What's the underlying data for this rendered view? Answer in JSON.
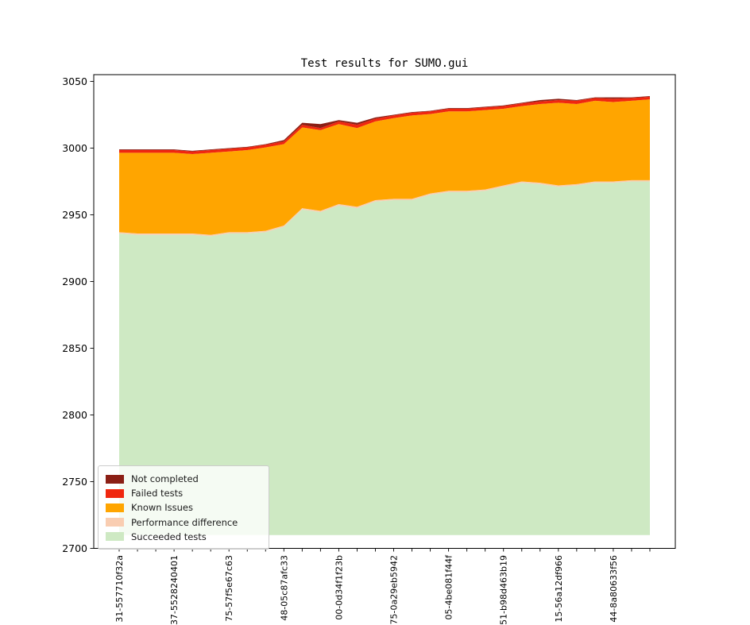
{
  "figure": {
    "background": "#ffffff"
  },
  "chart_data": {
    "type": "area",
    "stacked": true,
    "title": "Test results for SUMO.gui",
    "xlabel": "",
    "ylabel": "",
    "ylim": [
      2700,
      3055
    ],
    "yticks": [
      2700,
      2750,
      2800,
      2850,
      2900,
      2950,
      3000,
      3050
    ],
    "grid": false,
    "num_points": 30,
    "baseline": 2710,
    "x_tick_label_every": 3,
    "x_tick_labels": [
      "31-557710f32a",
      "37-5528240401",
      "75-57f5e67c63",
      "48-05c87afc33",
      "00-0d34f1f23b",
      "75-0a29eb5942",
      "05-4be081f44f",
      "51-b98d463b19",
      "15-56a12df966",
      "44-8a80633f56"
    ],
    "series": [
      {
        "name": "Succeeded tests",
        "color": "#cee9c3",
        "top_values": [
          2936,
          2935,
          2935,
          2935,
          2935,
          2934,
          2936,
          2936,
          2937,
          2941,
          2954,
          2952,
          2957,
          2955,
          2960,
          2961,
          2961,
          2965,
          2967,
          2967,
          2968,
          2971,
          2974,
          2973,
          2971,
          2972,
          2974,
          2974,
          2975,
          2975
        ]
      },
      {
        "name": "Performance difference",
        "color": "#f9cdb1",
        "top_values": [
          2937,
          2936,
          2936,
          2936,
          2936,
          2935,
          2937,
          2937,
          2938,
          2942,
          2955,
          2953,
          2958,
          2956,
          2961,
          2962,
          2962,
          2966,
          2968,
          2968,
          2969,
          2972,
          2975,
          2974,
          2972,
          2973,
          2975,
          2975,
          2976,
          2976
        ]
      },
      {
        "name": "Known Issues",
        "color": "#ffa500",
        "top_values": [
          2996.5,
          2996.5,
          2996.5,
          2996.5,
          2995.5,
          2996.5,
          2997.5,
          2998.5,
          3000.5,
          3003,
          3015.5,
          3013.5,
          3018,
          3015,
          3020,
          3022.5,
          3024.5,
          3025.5,
          3027.5,
          3027.5,
          3028.5,
          3029.5,
          3031.5,
          3033,
          3034,
          3033,
          3035.5,
          3034.5,
          3035.5,
          3036.5
        ]
      },
      {
        "name": "Failed tests",
        "color": "#f0270f",
        "top_values": [
          2998.5,
          2998.5,
          2998.5,
          2998.5,
          2997.5,
          2998.5,
          2999.5,
          3000.5,
          3002.5,
          3005,
          3017.5,
          3015,
          3020,
          3017.5,
          3022,
          3024.5,
          3026.5,
          3027.5,
          3029.5,
          3029.5,
          3030.5,
          3031.5,
          3033.5,
          3035,
          3036,
          3035.5,
          3037.5,
          3037,
          3037.5,
          3038.5
        ]
      },
      {
        "name": "Not completed",
        "color": "#8b1f15",
        "top_values": [
          2999,
          2999,
          2999,
          2999,
          2998,
          2999,
          3000,
          3001,
          3003,
          3006,
          3019,
          3018,
          3021,
          3019,
          3023,
          3025,
          3027,
          3028,
          3030,
          3030,
          3031,
          3032,
          3034,
          3036,
          3037,
          3036,
          3038,
          3038,
          3038,
          3039
        ]
      }
    ],
    "legend": {
      "position": "lower left",
      "entries": [
        {
          "label": "Not completed",
          "color": "#8b1f15"
        },
        {
          "label": "Failed tests",
          "color": "#f0270f"
        },
        {
          "label": "Known Issues",
          "color": "#ffa500"
        },
        {
          "label": "Performance difference",
          "color": "#f9cdb1"
        },
        {
          "label": "Succeeded tests",
          "color": "#cee9c3"
        }
      ]
    }
  }
}
